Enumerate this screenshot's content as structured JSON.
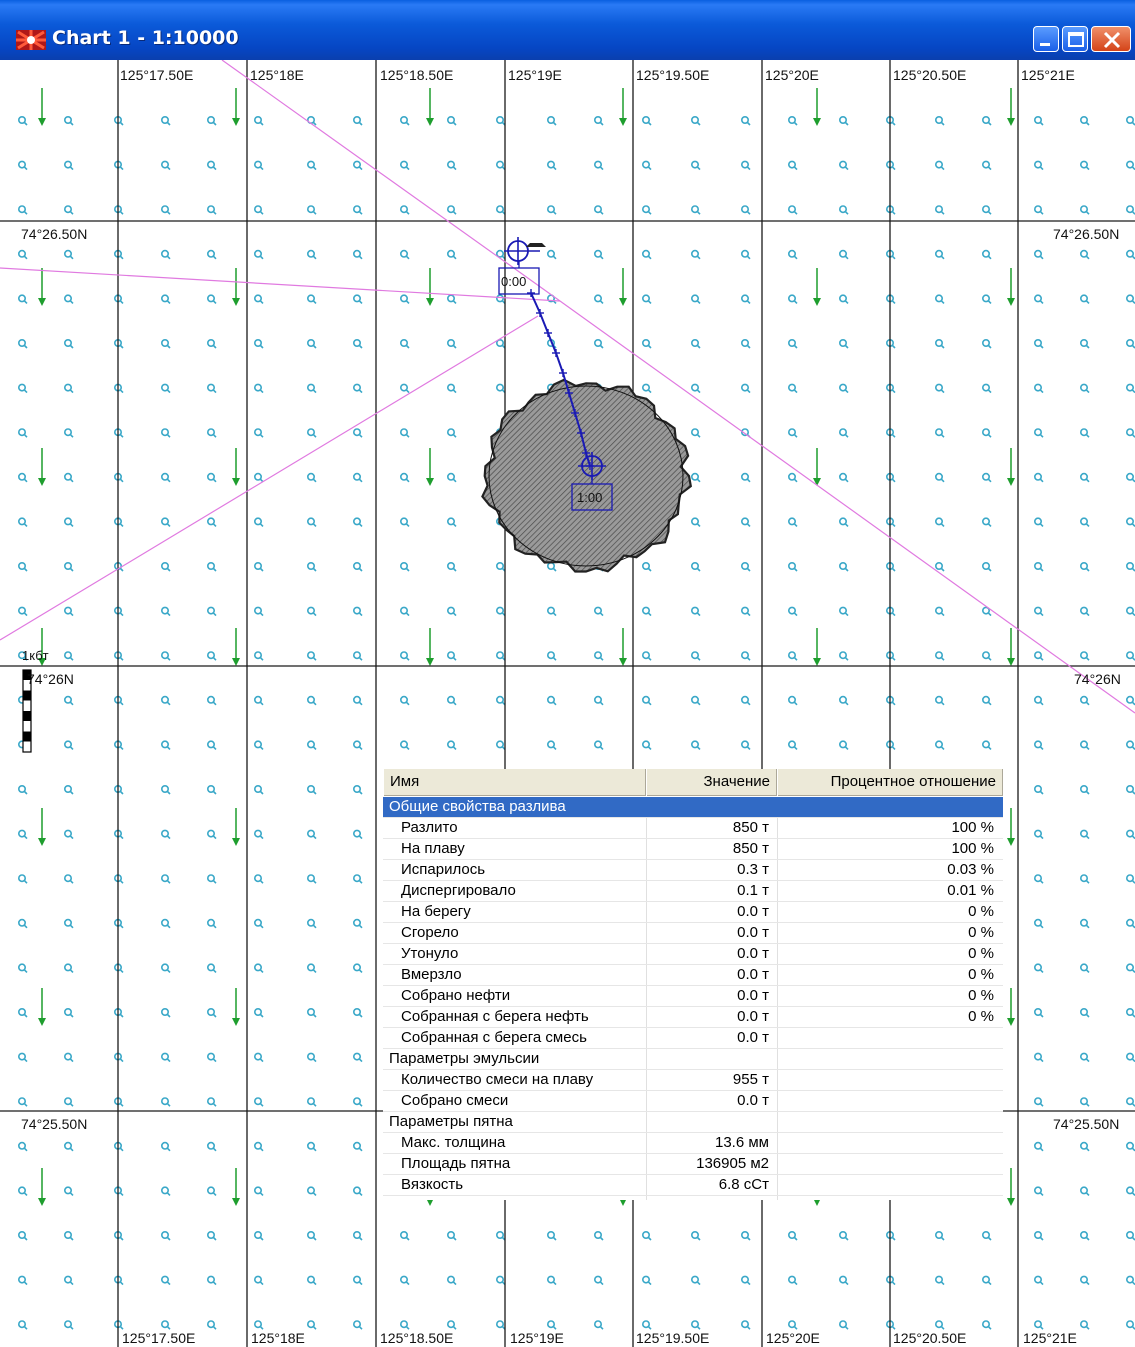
{
  "window": {
    "title": "Chart 1 - 1:10000",
    "icons": [
      "app-chart-icon",
      "minimize-icon",
      "maximize-icon",
      "close-icon"
    ]
  },
  "map": {
    "longitude_labels": [
      "125°17.50E",
      "125°18E",
      "125°18.50E",
      "125°19E",
      "125°19.50E",
      "125°20E",
      "125°20.50E",
      "125°21E"
    ],
    "latitude_labels": [
      "74°26.50N",
      "74°26N",
      "74°25.50N"
    ],
    "scale_label": "1кбт",
    "slick_time_labels": [
      "0:00",
      "1:00"
    ],
    "colors": {
      "grid": "#1a1a1a",
      "current_marker": "#3aa8c8",
      "wind_arrow": "#1e9e2e",
      "route_line": "#e07ae0",
      "drift_track": "#1a1ab4",
      "slick_fill": "#8a8a8a"
    }
  },
  "properties_panel": {
    "columns": [
      "Имя",
      "Значение",
      "Процентное отношение"
    ],
    "rows": [
      {
        "name": "Общие свойства разлива",
        "value": "",
        "percent": "",
        "group": true,
        "selected": true
      },
      {
        "name": "Разлито",
        "value": "850 т",
        "percent": "100 %"
      },
      {
        "name": "На плаву",
        "value": "850 т",
        "percent": "100 %"
      },
      {
        "name": "Испарилось",
        "value": "0.3 т",
        "percent": "0.03 %"
      },
      {
        "name": "Диспергировало",
        "value": "0.1 т",
        "percent": "0.01 %"
      },
      {
        "name": "На берегу",
        "value": "0.0 т",
        "percent": "0 %"
      },
      {
        "name": "Сгорело",
        "value": "0.0 т",
        "percent": "0 %"
      },
      {
        "name": "Утонуло",
        "value": "0.0 т",
        "percent": "0 %"
      },
      {
        "name": "Вмерзло",
        "value": "0.0 т",
        "percent": "0 %"
      },
      {
        "name": "Собрано нефти",
        "value": "0.0 т",
        "percent": "0 %"
      },
      {
        "name": "Собранная с берега нефть",
        "value": "0.0 т",
        "percent": "0 %"
      },
      {
        "name": "Собранная с берега смесь",
        "value": "0.0 т",
        "percent": ""
      },
      {
        "name": "Параметры эмульсии",
        "value": "",
        "percent": "",
        "group": true
      },
      {
        "name": "Количество смеси на плаву",
        "value": "955 т",
        "percent": ""
      },
      {
        "name": "Собрано смеси",
        "value": "0.0 т",
        "percent": ""
      },
      {
        "name": "Параметры пятна",
        "value": "",
        "percent": "",
        "group": true
      },
      {
        "name": "Макс. толщина",
        "value": "13.6 мм",
        "percent": ""
      },
      {
        "name": "Площадь пятна",
        "value": "136905 м2",
        "percent": ""
      },
      {
        "name": "Вязкость",
        "value": "6.8 сСт",
        "percent": ""
      }
    ]
  }
}
